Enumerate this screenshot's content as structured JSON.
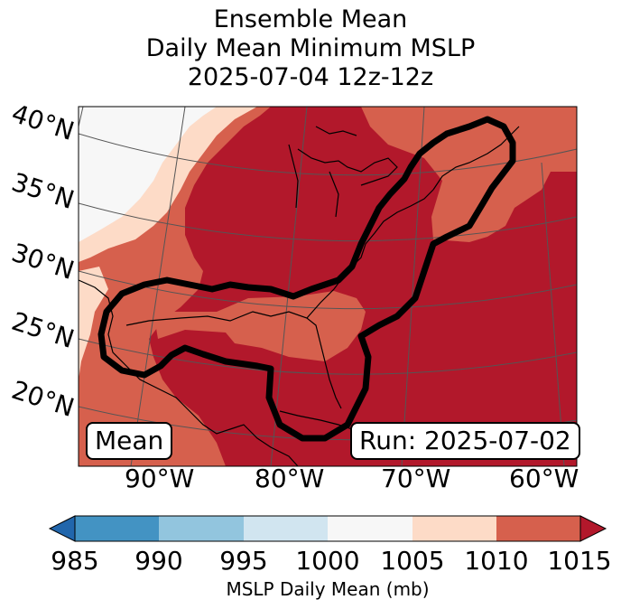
{
  "header": {
    "title_line1": "Ensemble Mean",
    "title_line2": "Daily Mean Minimum MSLP",
    "title_line3": "2025-07-04 12z-12z"
  },
  "map": {
    "lat_labels": [
      "40°N",
      "35°N",
      "30°N",
      "25°N",
      "20°N"
    ],
    "lon_labels": [
      "90°W",
      "80°W",
      "70°W",
      "60°W"
    ],
    "mean_label": "Mean",
    "run_label": "Run: 2025-07-02"
  },
  "colorbar": {
    "ticks": [
      "985",
      "990",
      "995",
      "1000",
      "1005",
      "1010",
      "1015"
    ],
    "label": "MSLP Daily Mean (mb)",
    "colors": {
      "under": "#2166ac",
      "b985_990": "#4393c3",
      "b990_995": "#92c5de",
      "b995_1000": "#d1e5f0",
      "b1000_1005": "#f7f7f7",
      "b1005_1010": "#fddbc7",
      "b1010_1015": "#d6604d",
      "over": "#b2182b"
    }
  }
}
